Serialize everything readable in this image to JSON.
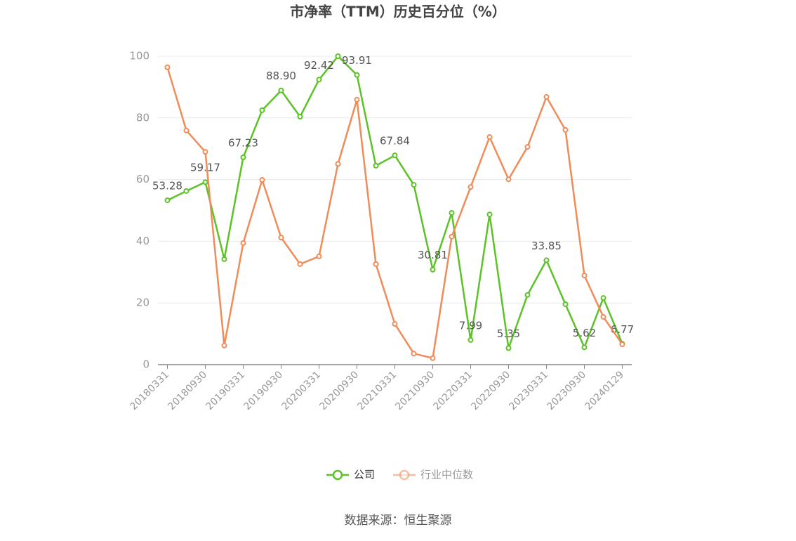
{
  "chart_data": {
    "type": "line",
    "title": "市净率（TTM）历史百分位（%）",
    "source": "数据来源：恒生聚源",
    "categories": [
      "20180331",
      null,
      "20180930",
      null,
      "20190331",
      null,
      "20190930",
      null,
      "20200331",
      null,
      "20200930",
      null,
      "20210331",
      null,
      "20210930",
      null,
      "20220331",
      null,
      "20220930",
      null,
      "20230331",
      null,
      "20230930",
      null,
      "20240129"
    ],
    "series": [
      {
        "name": "公司",
        "color": "#5cc227",
        "values": [
          53.28,
          56.3,
          59.17,
          34.2,
          67.23,
          82.5,
          88.9,
          80.4,
          92.42,
          100,
          93.91,
          64.5,
          67.84,
          58.3,
          30.81,
          49.2,
          7.99,
          48.7,
          5.35,
          22.6,
          33.85,
          19.6,
          5.62,
          21.6,
          6.77
        ],
        "value_labels": [
          "53.28",
          null,
          "59.17",
          null,
          "67.23",
          null,
          "88.90",
          null,
          "92.42",
          null,
          "93.91",
          null,
          "67.84",
          null,
          "30.81",
          null,
          "7.99",
          null,
          "5.35",
          null,
          "33.85",
          null,
          "5.62",
          null,
          "6.77"
        ]
      },
      {
        "name": "行业中位数",
        "color": "#f08c5a",
        "values": [
          96.4,
          75.9,
          69.0,
          6.2,
          39.4,
          59.9,
          41.2,
          32.6,
          35.1,
          65.1,
          85.9,
          32.6,
          13.2,
          3.6,
          2.1,
          41.5,
          57.6,
          73.8,
          60.1,
          70.6,
          86.8,
          76.1,
          28.9,
          15.5,
          6.6
        ]
      }
    ],
    "ylim": [
      0,
      100
    ],
    "yticks": [
      0,
      20,
      40,
      60,
      80,
      100
    ],
    "grid": true,
    "legend": "bottom"
  }
}
